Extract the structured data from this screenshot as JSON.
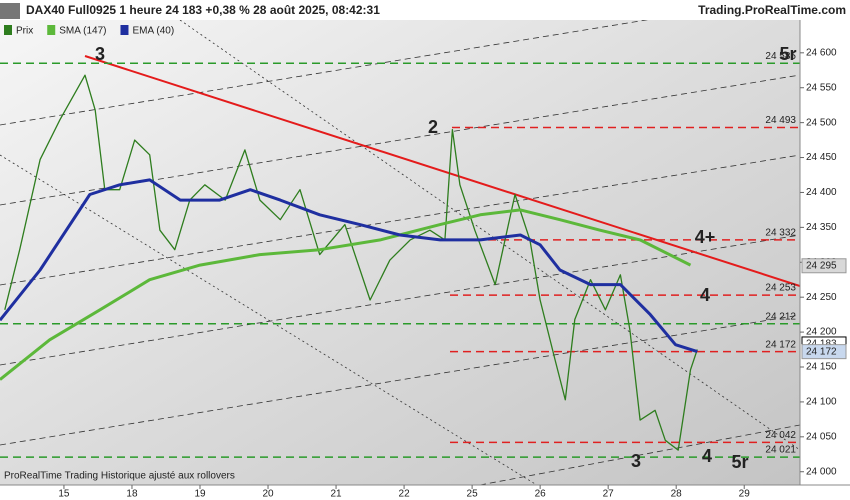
{
  "chart_data": {
    "type": "line",
    "title": "DAX40 Full0925 1 heure 24 183 +0,38 % 28 août 2025, 08:42:31",
    "source": "Trading.ProRealTime.com",
    "footer": "ProRealTime Trading  Historique ajusté aux rollovers",
    "xlim": [
      -0.94,
      10.82
    ],
    "xticks": [
      {
        "value": 0,
        "label": "15"
      },
      {
        "value": 1,
        "label": "18"
      },
      {
        "value": 2,
        "label": "19"
      },
      {
        "value": 3,
        "label": "20"
      },
      {
        "value": 4,
        "label": "21"
      },
      {
        "value": 5,
        "label": "22"
      },
      {
        "value": 6,
        "label": "25"
      },
      {
        "value": 7,
        "label": "26"
      },
      {
        "value": 8,
        "label": "27"
      },
      {
        "value": 9,
        "label": "28"
      },
      {
        "value": 10,
        "label": "29"
      }
    ],
    "ylim": [
      23981,
      24647
    ],
    "yticks": [
      {
        "value": 24000,
        "label": "24 000"
      },
      {
        "value": 24050,
        "label": "24 050"
      },
      {
        "value": 24100,
        "label": "24 100"
      },
      {
        "value": 24150,
        "label": "24 150"
      },
      {
        "value": 24200,
        "label": "24 200"
      },
      {
        "value": 24250,
        "label": "24 250"
      },
      {
        "value": 24300,
        "label": "24 300"
      },
      {
        "value": 24350,
        "label": "24 350"
      },
      {
        "value": 24400,
        "label": "24 400"
      },
      {
        "value": 24450,
        "label": "24 450"
      },
      {
        "value": 24500,
        "label": "24 500"
      },
      {
        "value": 24550,
        "label": "24 550"
      },
      {
        "value": 24600,
        "label": "24 600"
      }
    ],
    "series": [
      {
        "name": "Prix",
        "color": "#2e7d1e",
        "x": [
          -0.87,
          -0.65,
          -0.35,
          -0.06,
          0.31,
          0.46,
          0.6,
          0.82,
          1.04,
          1.26,
          1.41,
          1.63,
          1.85,
          2.07,
          2.37,
          2.66,
          2.88,
          3.18,
          3.47,
          3.76,
          4.13,
          4.5,
          4.79,
          5.09,
          5.38,
          5.6,
          5.71,
          5.82,
          6.04,
          6.34,
          6.63,
          6.85,
          7.0,
          7.22,
          7.37,
          7.51,
          7.74,
          7.96,
          8.18,
          8.32,
          8.47,
          8.69,
          8.84,
          9.03,
          9.21,
          9.31
        ],
        "values": [
          24232,
          24318,
          24447,
          24504,
          24568,
          24518,
          24404,
          24404,
          24475,
          24454,
          24346,
          24318,
          24389,
          24411,
          24389,
          24461,
          24389,
          24361,
          24404,
          24311,
          24354,
          24246,
          24303,
          24332,
          24346,
          24332,
          24490,
          24411,
          24346,
          24268,
          24397,
          24332,
          24246,
          24160,
          24103,
          24218,
          24275,
          24232,
          24282,
          24203,
          24074,
          24088,
          24045,
          24031,
          24146,
          24175
        ]
      },
      {
        "name": "SMA (147)",
        "color": "#5cb83a",
        "x": [
          -0.94,
          -0.21,
          0.53,
          1.26,
          2.0,
          2.88,
          3.76,
          4.65,
          5.53,
          6.12,
          6.71,
          7.29,
          7.88,
          8.47,
          9.21
        ],
        "values": [
          24132,
          24189,
          24232,
          24275,
          24296,
          24311,
          24318,
          24332,
          24354,
          24368,
          24375,
          24361,
          24346,
          24332,
          24296
        ]
      },
      {
        "name": "EMA (40)",
        "color": "#1f2fa0",
        "x": [
          -0.94,
          -0.35,
          0.38,
          0.82,
          1.26,
          1.71,
          2.29,
          2.74,
          3.18,
          3.76,
          4.35,
          4.94,
          5.53,
          6.12,
          6.71,
          7.0,
          7.29,
          7.74,
          8.18,
          8.62,
          8.99,
          9.31
        ],
        "values": [
          24217,
          24289,
          24397,
          24411,
          24418,
          24389,
          24389,
          24404,
          24389,
          24368,
          24354,
          24339,
          24332,
          24332,
          24339,
          24325,
          24289,
          24268,
          24268,
          24225,
          24182,
          24172
        ]
      }
    ],
    "levels": [
      {
        "value": 24585,
        "label": "24 585",
        "color": "#2a9a2a"
      },
      {
        "value": 24493,
        "label": "24 493",
        "color": "#e02020"
      },
      {
        "value": 24332,
        "label": "24 332",
        "color": "#e02020"
      },
      {
        "value": 24253,
        "label": "24 253",
        "color": "#e02020"
      },
      {
        "value": 24212,
        "label": "24 212",
        "color": "#2a9a2a"
      },
      {
        "value": 24172,
        "label": "24 172",
        "color": "#e02020"
      },
      {
        "value": 24042,
        "label": "24 042",
        "color": "#e02020"
      },
      {
        "value": 24021,
        "label": "24 021",
        "color": "#2a9a2a"
      }
    ],
    "axis_markers": [
      {
        "value": 24295,
        "label": "24 295",
        "color": "#d8d8d8"
      },
      {
        "value": 24183,
        "label": "24 183",
        "color": "#ffffff"
      },
      {
        "value": 24172,
        "label": "24 172",
        "color": "#c8d8ee"
      }
    ],
    "annotations": [
      {
        "text": "3",
        "color": "#2a9a2a"
      },
      {
        "text": "2",
        "color": "#e02020"
      },
      {
        "text": "4+",
        "color": "#e02020"
      },
      {
        "text": "4",
        "color": "#e02020"
      },
      {
        "text": "3",
        "color": "#e02020"
      },
      {
        "text": "4",
        "color": "#2a9a2a"
      },
      {
        "text": "5r",
        "color": "#e02020"
      },
      {
        "text": "5r",
        "color": "#2a9a2a"
      }
    ]
  }
}
